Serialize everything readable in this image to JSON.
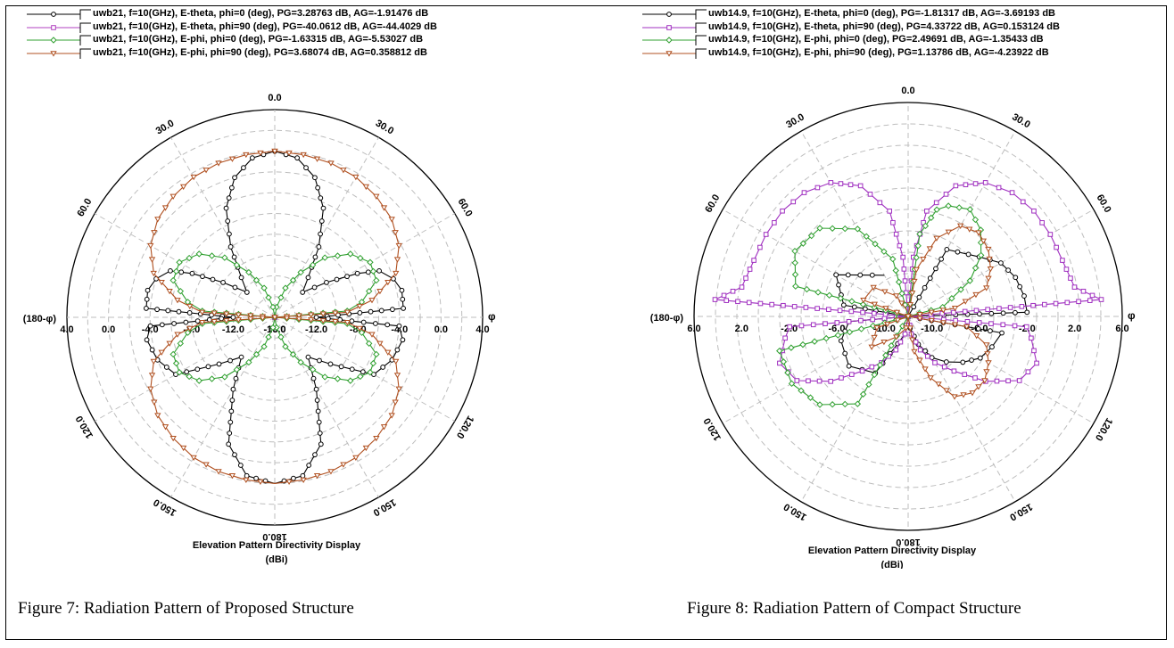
{
  "chart_data": [
    {
      "type": "polar-line",
      "title": "Elevation Pattern Directivity Display",
      "unit": "(dBi)",
      "radial_ticks": [
        "4.0",
        "0.0",
        "-4.0",
        "-8.0",
        "-12.0",
        "-16.0"
      ],
      "radial_range": [
        -16,
        4
      ],
      "angle_labels": [
        "0.0",
        "30.0",
        "60.0",
        "120.0",
        "150.0",
        "180.0"
      ],
      "left_axis_label": "(180-φ)",
      "right_axis_label": "φ",
      "caption": "Figure 7: Radiation Pattern of Proposed Structure",
      "series": [
        {
          "name": "uwb21, f=10(GHz), E-theta, phi=0 (deg), PG=3.28763 dB, AG=-1.91476 dB",
          "color": "#000000",
          "marker": "circle",
          "angles": [
            0,
            8,
            16,
            24,
            32,
            40,
            48,
            56,
            62,
            66,
            72,
            78,
            86,
            90,
            94,
            100,
            110,
            120,
            130,
            140,
            150,
            160,
            170,
            180
          ],
          "values": [
            0,
            -0.5,
            -2,
            -4.5,
            -8,
            -11,
            -12.4,
            -10,
            -7,
            -5,
            -4,
            -3.5,
            -3.6,
            -12,
            -4,
            -3.5,
            -4,
            -5,
            -9,
            -11,
            -8,
            -3,
            -0.5,
            0
          ]
        },
        {
          "name": "uwb21, f=10(GHz), E-theta, phi=90 (deg), PG=-40.0612 dB, AG=-44.4029 dB",
          "color": "#b040c0",
          "marker": "square",
          "angles": [
            0,
            90,
            180
          ],
          "values": [
            -16,
            -16,
            -16
          ]
        },
        {
          "name": "uwb21, f=10(GHz), E-phi, phi=0 (deg), PG=-1.63315 dB, AG=-5.53027 dB",
          "color": "#30a030",
          "marker": "diamond",
          "angles": [
            0,
            10,
            20,
            30,
            40,
            50,
            60,
            70,
            80,
            85,
            90,
            95,
            100,
            110,
            120,
            130,
            140,
            150,
            160,
            170,
            180
          ],
          "values": [
            -16,
            -15,
            -13,
            -11,
            -8.5,
            -6.5,
            -5.4,
            -5.6,
            -7.5,
            -9,
            -16,
            -9,
            -7.5,
            -5.6,
            -5.4,
            -6.5,
            -8.5,
            -11,
            -13,
            -15,
            -16
          ]
        },
        {
          "name": "uwb21, f=10(GHz), E-phi, phi=90 (deg), PG=3.68074 dB, AG=0.358812 dB",
          "color": "#b05020",
          "marker": "triangle",
          "angles": [
            0,
            10,
            20,
            30,
            40,
            50,
            60,
            70,
            80,
            86,
            90,
            94,
            100,
            110,
            120,
            130,
            140,
            150,
            160,
            170,
            180
          ],
          "values": [
            0,
            -0.1,
            -0.2,
            -0.4,
            -0.8,
            -1.3,
            -2.2,
            -3.6,
            -6.5,
            -9,
            -16,
            -9,
            -6.5,
            -3.6,
            -2.2,
            -1.3,
            -0.8,
            -0.4,
            -0.2,
            -0.1,
            0
          ]
        }
      ]
    },
    {
      "type": "polar-line",
      "title": "Elevation Pattern Directivity Display",
      "unit": "(dBi)",
      "radial_ticks": [
        "6.0",
        "2.0",
        "-2.0",
        "-6.0",
        "-10.0"
      ],
      "radial_range": [
        -12,
        6
      ],
      "angle_labels": [
        "0.0",
        "30.0",
        "60.0",
        "120.0",
        "150.0",
        "180.0"
      ],
      "left_axis_label": "(180-φ)",
      "right_axis_label": "φ",
      "caption": "Figure 8: Radiation Pattern of Compact Structure",
      "series": [
        {
          "name": "uwb14.9, f=10(GHz), E-theta, phi=0 (deg), PG=-1.81317 dB, AG=-3.69193 dB",
          "color": "#000000",
          "marker": "circle",
          "angles": [
            0,
            30,
            50,
            60,
            70,
            80,
            88,
            90,
            100,
            110,
            120,
            130,
            140,
            150,
            160,
            170,
            180,
            -170,
            -150,
            -130,
            -110,
            -95,
            -90,
            -80,
            -60,
            -30
          ],
          "values": [
            -12,
            -5.5,
            -4.2,
            -3,
            -2.4,
            -2.1,
            -2,
            -12,
            -4,
            -4.5,
            -5,
            -6,
            -7,
            -8,
            -9.5,
            -11,
            -12,
            -10.5,
            -6.5,
            -5.5,
            -6,
            -7,
            -12,
            -6.5,
            -5,
            -8
          ]
        },
        {
          "name": "uwb14.9, f=10(GHz), E-theta, phi=90 (deg), PG=4.33722 dB, AG=0.153124 dB",
          "color": "#a030c0",
          "marker": "square",
          "angles": [
            0,
            5,
            10,
            20,
            30,
            40,
            50,
            60,
            70,
            80,
            85,
            90,
            95,
            100,
            110,
            120,
            130,
            140,
            150,
            160,
            170,
            180
          ],
          "values": [
            -12,
            -7,
            -3,
            -0.3,
            1,
            1.6,
            1.8,
            1.8,
            1.8,
            2.2,
            4.3,
            -12,
            -2,
            -1.5,
            -0.5,
            -1.2,
            -3.5,
            -6,
            -7.5,
            -9,
            -10.5,
            -12
          ]
        },
        {
          "name": "uwb14.9, f=10(GHz), E-phi, phi=0 (deg), PG=2.49691 dB, AG=-1.35433 dB",
          "color": "#30a030",
          "marker": "diamond",
          "angles": [
            0,
            8,
            15,
            20,
            30,
            40,
            50,
            60,
            75,
            90,
            -90,
            -75,
            -60,
            -45,
            -30,
            -15,
            0,
            -165,
            -150,
            -135,
            -120,
            -105,
            -90
          ],
          "values": [
            -12,
            -5,
            -2.7,
            -2.1,
            -1.6,
            -2.5,
            -4,
            -6,
            -9,
            -12,
            -12,
            -2.2,
            -1,
            -1.5,
            -3.5,
            -7,
            -12,
            -12,
            -3.5,
            -1.5,
            -0.7,
            -0.8,
            -12
          ]
        },
        {
          "name": "uwb14.9, f=10(GHz), E-phi, phi=90 (deg), PG=1.13786 dB, AG=-4.23922 dB",
          "color": "#b05020",
          "marker": "triangle",
          "angles": [
            0,
            10,
            20,
            30,
            40,
            50,
            60,
            70,
            80,
            90,
            100,
            110,
            120,
            130,
            140,
            150,
            160,
            170,
            180,
            -170,
            -150,
            -130,
            -110,
            -90,
            -70,
            -50,
            -30,
            -10
          ],
          "values": [
            -12,
            -8,
            -5,
            -3.2,
            -2.8,
            -3.2,
            -4,
            -5,
            -8,
            -12,
            -7,
            -5,
            -4.2,
            -3.6,
            -3.6,
            -4.2,
            -6.5,
            -9,
            -12,
            -11,
            -10,
            -8,
            -9.2,
            -12,
            -8,
            -8.2,
            -10,
            -11.5
          ]
        }
      ]
    }
  ]
}
